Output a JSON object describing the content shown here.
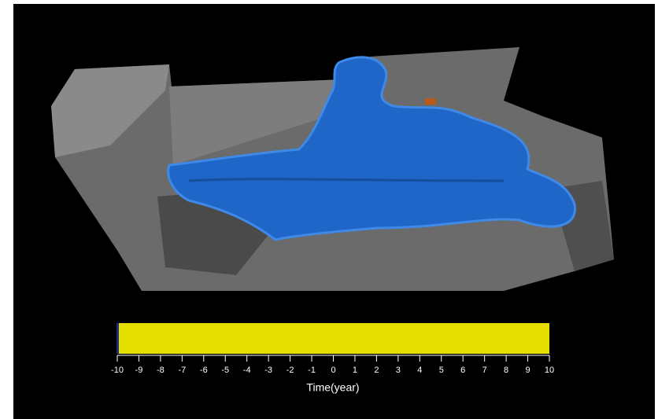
{
  "time_axis": {
    "label": "Time(year)",
    "xlim": [
      -10,
      10
    ],
    "xticks": [
      -10,
      -9,
      -8,
      -7,
      -6,
      -5,
      -4,
      -3,
      -2,
      -1,
      0,
      1,
      2,
      3,
      4,
      5,
      6,
      7,
      8,
      9,
      10
    ]
  }
}
